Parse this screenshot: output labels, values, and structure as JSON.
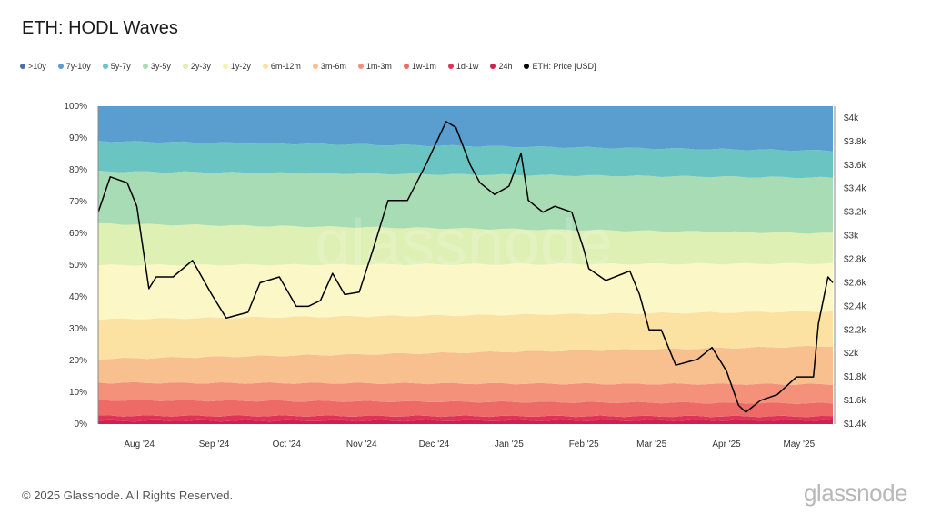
{
  "title": "ETH: HODL Waves",
  "footer": "© 2025 Glassnode. All Rights Reserved.",
  "brand": "glassnode",
  "watermark": "glassnode",
  "chart_data": {
    "type": "area",
    "stacked": true,
    "title": "ETH: HODL Waves",
    "x_ticks": [
      "Aug '24",
      "Sep '24",
      "Oct '24",
      "Nov '24",
      "Dec '24",
      "Jan '25",
      "Feb '25",
      "Mar '25",
      "Apr '25",
      "May '25"
    ],
    "y_left_ticks": [
      "0%",
      "10%",
      "20%",
      "30%",
      "40%",
      "50%",
      "60%",
      "70%",
      "80%",
      "90%",
      "100%"
    ],
    "y_left_range": [
      0,
      100
    ],
    "y_right_ticks": [
      "$1.4k",
      "$1.6k",
      "$1.8k",
      "$2k",
      "$2.2k",
      "$2.4k",
      "$2.6k",
      "$2.8k",
      "$3k",
      "$3.2k",
      "$3.4k",
      "$3.6k",
      "$3.8k",
      "$4k"
    ],
    "y_right_range": [
      1400,
      4100
    ],
    "legend_position": "top-left",
    "grid": false,
    "bands": [
      {
        "name": "24h",
        "color": "#d0204f",
        "start": 1.0,
        "end": 1.2
      },
      {
        "name": "1d-1w",
        "color": "#de3358",
        "start": 2.6,
        "end": 2.4
      },
      {
        "name": "1w-1m",
        "color": "#ee6a66",
        "start": 7.5,
        "end": 6.5
      },
      {
        "name": "1m-3m",
        "color": "#f3917b",
        "start": 13.0,
        "end": 12.5
      },
      {
        "name": "3m-6m",
        "color": "#f7c08e",
        "start": 20.5,
        "end": 24.5
      },
      {
        "name": "6m-12m",
        "color": "#fbe2a2",
        "start": 33.0,
        "end": 35.5
      },
      {
        "name": "1y-2y",
        "color": "#fbf7c6",
        "start": 50.0,
        "end": 50.5
      },
      {
        "name": "2y-3y",
        "color": "#dff0b4",
        "start": 63.0,
        "end": 60.0
      },
      {
        "name": "3y-5y",
        "color": "#a8dcb4",
        "start": 79.5,
        "end": 77.5
      },
      {
        "name": "5y-7y",
        "color": "#6ac5c2",
        "start": 89.0,
        "end": 86.0
      },
      {
        "name": "7y-10y",
        "color": "#5a9ed0",
        "start": 100,
        "end": 100
      },
      {
        "name": ">10y",
        "color": "#4a6fa5",
        "start": 0,
        "end": 0
      }
    ],
    "legend": [
      {
        "name": ">10y",
        "color": "#4a6fa5"
      },
      {
        "name": "7y-10y",
        "color": "#5a9ed0"
      },
      {
        "name": "5y-7y",
        "color": "#6ac5c2"
      },
      {
        "name": "3y-5y",
        "color": "#a8dcb4"
      },
      {
        "name": "2y-3y",
        "color": "#dff0b4"
      },
      {
        "name": "1y-2y",
        "color": "#f3f3b4"
      },
      {
        "name": "6m-12m",
        "color": "#fbe2a2"
      },
      {
        "name": "3m-6m",
        "color": "#f7c08e"
      },
      {
        "name": "1m-3m",
        "color": "#f3917b"
      },
      {
        "name": "1w-1m",
        "color": "#ee6a66"
      },
      {
        "name": "1d-1w",
        "color": "#de3358"
      },
      {
        "name": "24h",
        "color": "#d0204f"
      },
      {
        "name": "ETH: Price [USD]",
        "color": "#000000"
      }
    ],
    "price_series": {
      "name": "ETH: Price [USD]",
      "color": "#000000",
      "x": [
        "2024-07-15",
        "2024-07-20",
        "2024-07-27",
        "2024-07-31",
        "2024-08-05",
        "2024-08-08",
        "2024-08-15",
        "2024-08-23",
        "2024-08-31",
        "2024-09-06",
        "2024-09-15",
        "2024-09-20",
        "2024-09-28",
        "2024-10-05",
        "2024-10-10",
        "2024-10-15",
        "2024-10-20",
        "2024-10-25",
        "2024-10-31",
        "2024-11-06",
        "2024-11-12",
        "2024-11-20",
        "2024-11-28",
        "2024-12-06",
        "2024-12-10",
        "2024-12-16",
        "2024-12-20",
        "2024-12-26",
        "2025-01-01",
        "2025-01-06",
        "2025-01-09",
        "2025-01-15",
        "2025-01-20",
        "2025-01-27",
        "2025-02-01",
        "2025-02-03",
        "2025-02-10",
        "2025-02-20",
        "2025-02-24",
        "2025-02-28",
        "2025-03-05",
        "2025-03-11",
        "2025-03-20",
        "2025-03-26",
        "2025-04-01",
        "2025-04-06",
        "2025-04-09",
        "2025-04-15",
        "2025-04-22",
        "2025-04-30",
        "2025-05-07",
        "2025-05-09",
        "2025-05-13",
        "2025-05-15"
      ],
      "y": [
        3200,
        3500,
        3450,
        3250,
        2550,
        2650,
        2650,
        2790,
        2500,
        2300,
        2350,
        2600,
        2650,
        2400,
        2400,
        2450,
        2680,
        2500,
        2520,
        2900,
        3300,
        3300,
        3620,
        3970,
        3920,
        3600,
        3450,
        3350,
        3420,
        3700,
        3300,
        3200,
        3250,
        3200,
        2880,
        2720,
        2620,
        2700,
        2500,
        2200,
        2200,
        1900,
        1950,
        2050,
        1850,
        1560,
        1500,
        1600,
        1650,
        1800,
        1800,
        2250,
        2650,
        2600
      ]
    }
  }
}
